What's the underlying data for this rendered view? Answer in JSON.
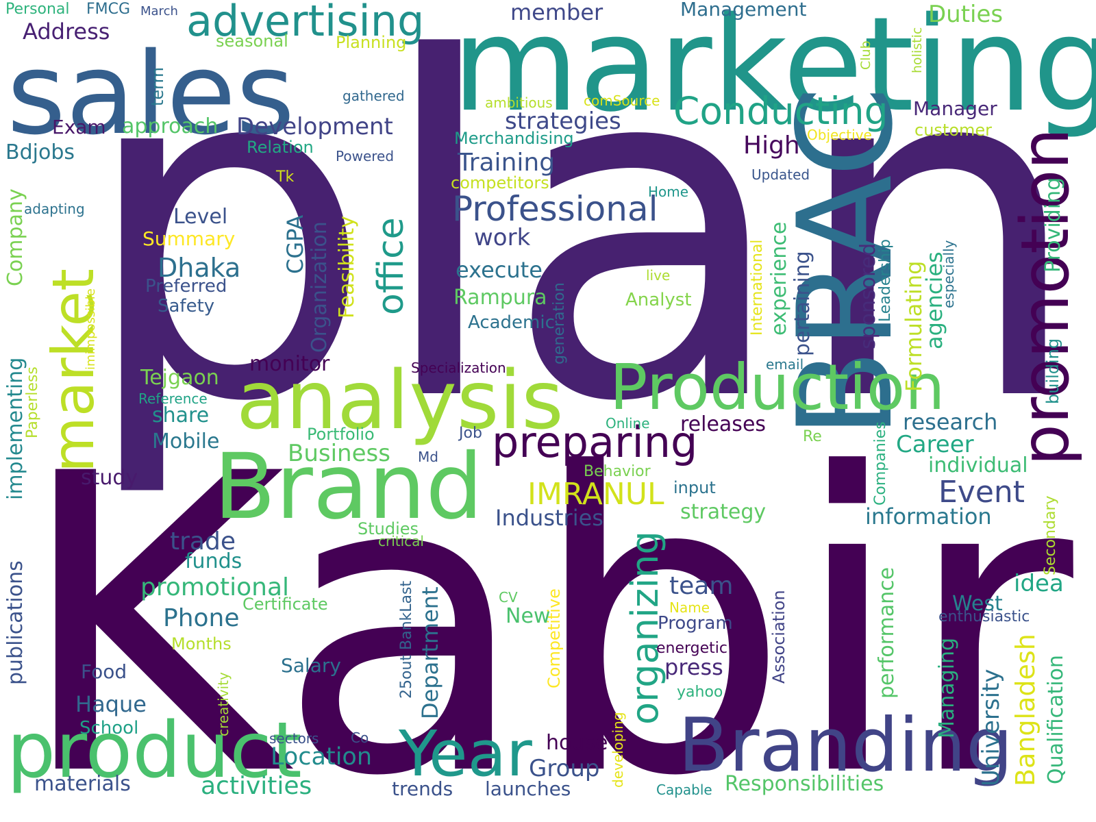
{
  "words": [
    {
      "text": "plan",
      "color": "#472170"
    },
    {
      "text": "Kabir",
      "color": "#440154"
    },
    {
      "text": "marketing",
      "color": "#20958a"
    },
    {
      "text": "sales",
      "color": "#355f8d"
    },
    {
      "text": "BRAC",
      "color": "#2d6f8e"
    },
    {
      "text": "analysis",
      "color": "#a0da39"
    },
    {
      "text": "Brand",
      "color": "#5ec962"
    },
    {
      "text": "product",
      "color": "#4ac16d"
    },
    {
      "text": "Branding",
      "color": "#414487"
    },
    {
      "text": "Production",
      "color": "#5ec962"
    },
    {
      "text": "promotion",
      "color": "#440154"
    },
    {
      "text": "market",
      "color": "#bddf26"
    },
    {
      "text": "Year",
      "color": "#1f988b"
    },
    {
      "text": "advertising",
      "color": "#21918c"
    },
    {
      "text": "preparing",
      "color": "#440154"
    },
    {
      "text": "Conducting",
      "color": "#20a386"
    },
    {
      "text": "Professional",
      "color": "#3b528b"
    },
    {
      "text": "office",
      "color": "#1f9a8a"
    },
    {
      "text": "organizing",
      "color": "#21a585"
    },
    {
      "text": "IMRANUL",
      "color": "#d2e21b"
    },
    {
      "text": "Event",
      "color": "#3e4a89"
    },
    {
      "text": "Location",
      "color": "#228c8d"
    },
    {
      "text": "activities",
      "color": "#2bb07f"
    },
    {
      "text": "Development",
      "color": "#414487"
    },
    {
      "text": "member",
      "color": "#3f4889"
    },
    {
      "text": "Management",
      "color": "#2e6e8e"
    },
    {
      "text": "Duties",
      "color": "#7ad151"
    },
    {
      "text": "Address",
      "color": "#482173"
    },
    {
      "text": "Personal",
      "color": "#2eb37c"
    },
    {
      "text": "FMCG",
      "color": "#2e6e8e"
    },
    {
      "text": "March",
      "color": "#3b528b"
    },
    {
      "text": "seasonal",
      "color": "#7ad151"
    },
    {
      "text": "Planning",
      "color": "#c8e020"
    },
    {
      "text": "term",
      "color": "#2a788e"
    },
    {
      "text": "gathered",
      "color": "#31688e"
    },
    {
      "text": "ambitious",
      "color": "#b5de2b"
    },
    {
      "text": "comSource",
      "color": "#d8e219"
    },
    {
      "text": "Club",
      "color": "#a5db36"
    },
    {
      "text": "holistic",
      "color": "#a8db34"
    },
    {
      "text": "Manager",
      "color": "#482878"
    },
    {
      "text": "customer",
      "color": "#b8de29"
    },
    {
      "text": "Objective",
      "color": "#f1e51d"
    },
    {
      "text": "Exam",
      "color": "#481769"
    },
    {
      "text": "approach",
      "color": "#54c568"
    },
    {
      "text": "strategies",
      "color": "#3e4989"
    },
    {
      "text": "Merchandising",
      "color": "#1e9c89"
    },
    {
      "text": "Relation",
      "color": "#22a884"
    },
    {
      "text": "High",
      "color": "#46085c"
    },
    {
      "text": "Bdjobs",
      "color": "#2a788e"
    },
    {
      "text": "Powered",
      "color": "#3b528b"
    },
    {
      "text": "Training",
      "color": "#3a548c"
    },
    {
      "text": "Updated",
      "color": "#39558c"
    },
    {
      "text": "Company",
      "color": "#7ad151"
    },
    {
      "text": "Tk",
      "color": "#d2e21b"
    },
    {
      "text": "competitors",
      "color": "#c5e021"
    },
    {
      "text": "Home",
      "color": "#1f968b"
    },
    {
      "text": "Providing",
      "color": "#35b779"
    },
    {
      "text": "adapting",
      "color": "#2c728e"
    },
    {
      "text": "Level",
      "color": "#3b528b"
    },
    {
      "text": "Organization",
      "color": "#3b528b"
    },
    {
      "text": "Feasibility",
      "color": "#d0e11c"
    },
    {
      "text": "CGPA",
      "color": "#2c718e"
    },
    {
      "text": "Summary",
      "color": "#fde725"
    },
    {
      "text": "work",
      "color": "#404588"
    },
    {
      "text": "Formulating",
      "color": "#bddf26"
    },
    {
      "text": "Leadership",
      "color": "#26828e"
    },
    {
      "text": "International",
      "color": "#e5e419"
    },
    {
      "text": "experience",
      "color": "#3dbc74"
    },
    {
      "text": "pertaining",
      "color": "#3b528b"
    },
    {
      "text": "sponsored",
      "color": "#472c7a"
    },
    {
      "text": "agencies",
      "color": "#2ab07f"
    },
    {
      "text": "especially",
      "color": "#2c738e"
    },
    {
      "text": "building",
      "color": "#21918c"
    },
    {
      "text": "Dhaka",
      "color": "#2d708e"
    },
    {
      "text": "Preferred",
      "color": "#3b528b"
    },
    {
      "text": "Safety",
      "color": "#375b8d"
    },
    {
      "text": "imimpossible",
      "color": "#d8e219"
    },
    {
      "text": "execute",
      "color": "#2c728e"
    },
    {
      "text": "live",
      "color": "#addc30"
    },
    {
      "text": "Analyst",
      "color": "#84d44b"
    },
    {
      "text": "Rampura",
      "color": "#5ec962"
    },
    {
      "text": "Academic",
      "color": "#2c728e"
    },
    {
      "text": "generation",
      "color": "#306a8e"
    },
    {
      "text": "implementing",
      "color": "#23898e"
    },
    {
      "text": "monitor",
      "color": "#440154"
    },
    {
      "text": "Specialization",
      "color": "#440154"
    },
    {
      "text": "email",
      "color": "#2a788e"
    },
    {
      "text": "Paperless",
      "color": "#b5de2b"
    },
    {
      "text": "Tejgaon",
      "color": "#7ad151"
    },
    {
      "text": "Reference",
      "color": "#20a386"
    },
    {
      "text": "share",
      "color": "#21918c"
    },
    {
      "text": "Mobile",
      "color": "#2a788e"
    },
    {
      "text": "Portfolio",
      "color": "#3aba76"
    },
    {
      "text": "Online",
      "color": "#2db27d"
    },
    {
      "text": "releases",
      "color": "#440154"
    },
    {
      "text": "research",
      "color": "#2d708e"
    },
    {
      "text": "Job",
      "color": "#3b528b"
    },
    {
      "text": "Re",
      "color": "#7ad151"
    },
    {
      "text": "Career",
      "color": "#22a884"
    },
    {
      "text": "Companies",
      "color": "#2ab07f"
    },
    {
      "text": "Business",
      "color": "#5ec962"
    },
    {
      "text": "Md",
      "color": "#3b528b"
    },
    {
      "text": "individual",
      "color": "#3dbc74"
    },
    {
      "text": "Behavior",
      "color": "#7ad151"
    },
    {
      "text": "input",
      "color": "#2c738e"
    },
    {
      "text": "Secondary",
      "color": "#addc30"
    },
    {
      "text": "study",
      "color": "#481a6c"
    },
    {
      "text": "strategy",
      "color": "#5ec962"
    },
    {
      "text": "information",
      "color": "#2a788e"
    },
    {
      "text": "Industries",
      "color": "#3b528b"
    },
    {
      "text": "Studies",
      "color": "#5ec962"
    },
    {
      "text": "critical",
      "color": "#7ad151"
    },
    {
      "text": "publications",
      "color": "#3b528b"
    },
    {
      "text": "trade",
      "color": "#3b528b"
    },
    {
      "text": "funds",
      "color": "#21918c"
    },
    {
      "text": "Department",
      "color": "#2c718e"
    },
    {
      "text": "Association",
      "color": "#414487"
    },
    {
      "text": "performance",
      "color": "#54c568"
    },
    {
      "text": "idea",
      "color": "#21a685"
    },
    {
      "text": "Qualification",
      "color": "#35b779"
    },
    {
      "text": "team",
      "color": "#3b528b"
    },
    {
      "text": "promotional",
      "color": "#35b779"
    },
    {
      "text": "Certificate",
      "color": "#5ec962"
    },
    {
      "text": "Phone",
      "color": "#2c728e"
    },
    {
      "text": "CV",
      "color": "#5ec962"
    },
    {
      "text": "Competitive",
      "color": "#fde725"
    },
    {
      "text": "New",
      "color": "#4ac16d"
    },
    {
      "text": "Name",
      "color": "#e5e419"
    },
    {
      "text": "West",
      "color": "#26828e"
    },
    {
      "text": "enthusiastic",
      "color": "#3b528b"
    },
    {
      "text": "Program",
      "color": "#3e4989"
    },
    {
      "text": "Bangladesh",
      "color": "#dde318"
    },
    {
      "text": "University",
      "color": "#2c718e"
    },
    {
      "text": "Managing",
      "color": "#2ab07f"
    },
    {
      "text": "Months",
      "color": "#b5de2b"
    },
    {
      "text": "25out BankLast",
      "color": "#33638d"
    },
    {
      "text": "energetic",
      "color": "#440154"
    },
    {
      "text": "Salary",
      "color": "#2c718e"
    },
    {
      "text": "creativity",
      "color": "#a5db36"
    },
    {
      "text": "press",
      "color": "#482878"
    },
    {
      "text": "Food",
      "color": "#3b528b"
    },
    {
      "text": "Haque",
      "color": "#31688e"
    },
    {
      "text": "yahoo",
      "color": "#2db27d"
    },
    {
      "text": "School",
      "color": "#1fa187"
    },
    {
      "text": "house",
      "color": "#440154"
    },
    {
      "text": "developing",
      "color": "#e5e419"
    },
    {
      "text": "Group",
      "color": "#3b528b"
    },
    {
      "text": "sectors",
      "color": "#3b528b"
    },
    {
      "text": "Co",
      "color": "#3b528b"
    },
    {
      "text": "Responsibilities",
      "color": "#54c568"
    },
    {
      "text": "materials",
      "color": "#3b528b"
    },
    {
      "text": "trends",
      "color": "#3b528b"
    },
    {
      "text": "launches",
      "color": "#3b528b"
    },
    {
      "text": "Capable",
      "color": "#21918c"
    }
  ]
}
